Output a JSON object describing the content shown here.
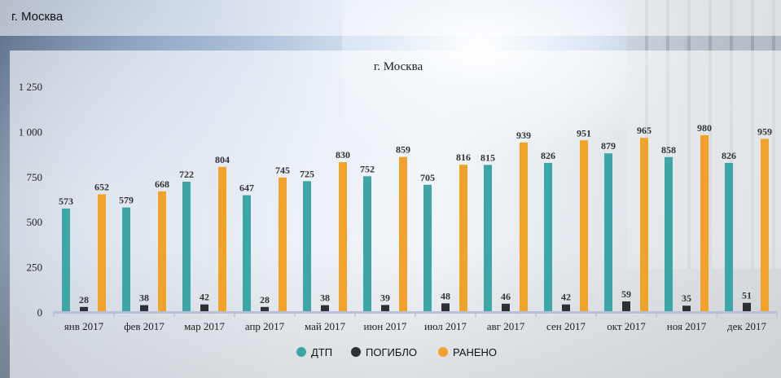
{
  "page": {
    "title": "г. Москва"
  },
  "chart_data": {
    "type": "bar",
    "title": "г. Москва",
    "xlabel": "",
    "ylabel": "",
    "ylim": [
      0,
      1250
    ],
    "yticks": [
      "0",
      "250",
      "500",
      "750",
      "1 000",
      "1 250"
    ],
    "ytick_values": [
      0,
      250,
      500,
      750,
      1000,
      1250
    ],
    "grid": false,
    "legend_position": "bottom",
    "categories": [
      "янв 2017",
      "фев 2017",
      "мар 2017",
      "апр 2017",
      "май 2017",
      "июн 2017",
      "июл 2017",
      "авг 2017",
      "сен 2017",
      "окт 2017",
      "ноя 2017",
      "дек 2017"
    ],
    "series": [
      {
        "name": "ДТП",
        "color": "#3ea6a6",
        "values": [
          573,
          579,
          722,
          647,
          725,
          752,
          705,
          815,
          826,
          879,
          858,
          826
        ]
      },
      {
        "name": "ПОГИБЛО",
        "color": "#2f3033",
        "values": [
          28,
          38,
          42,
          28,
          38,
          39,
          48,
          46,
          42,
          59,
          35,
          51
        ]
      },
      {
        "name": "РАНЕНО",
        "color": "#f0a22a",
        "values": [
          652,
          668,
          804,
          745,
          830,
          859,
          816,
          939,
          951,
          965,
          980,
          959
        ]
      }
    ]
  }
}
